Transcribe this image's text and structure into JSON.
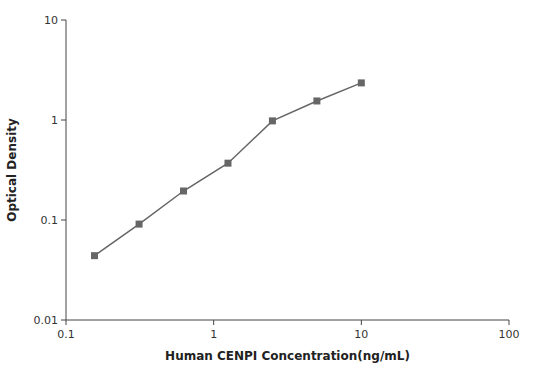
{
  "chart_data": {
    "type": "line",
    "x_label": "Human CENPI Concentration(ng/mL)",
    "y_label": "Optical Density",
    "x": [
      0.156,
      0.3125,
      0.625,
      1.25,
      2.5,
      5.0,
      10.0
    ],
    "series": [
      {
        "values": [
          0.044,
          0.091,
          0.195,
          0.37,
          0.98,
          1.55,
          2.35
        ],
        "color": "#666666",
        "marker": "square"
      }
    ],
    "xlim": [
      0.1,
      100
    ],
    "ylim": [
      0.01,
      10
    ],
    "xticks": [
      0.1,
      1,
      10,
      100
    ],
    "yticks": [
      0.01,
      0.1,
      1,
      10
    ],
    "log": true
  }
}
